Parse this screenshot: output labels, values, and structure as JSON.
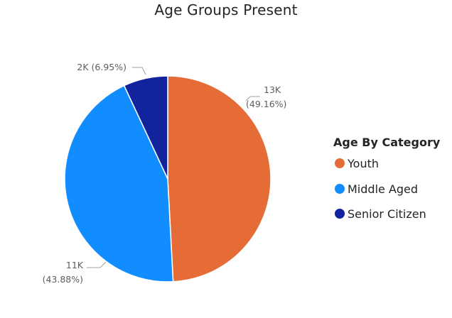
{
  "chart_data": {
    "type": "pie",
    "title": "Age Groups Present",
    "legend_title": "Age By Category",
    "legend_position": "right",
    "slices": [
      {
        "name": "Youth",
        "value_label": "13K",
        "percent": 49.16,
        "percent_label": "(49.16%)",
        "color": "#E66C37"
      },
      {
        "name": "Middle Aged",
        "value_label": "11K",
        "percent": 43.88,
        "percent_label": "(43.88%)",
        "color": "#118DFF"
      },
      {
        "name": "Senior Citizen",
        "value_label": "2K",
        "percent": 6.95,
        "percent_label": "(6.95%)",
        "color": "#12239E"
      }
    ]
  }
}
